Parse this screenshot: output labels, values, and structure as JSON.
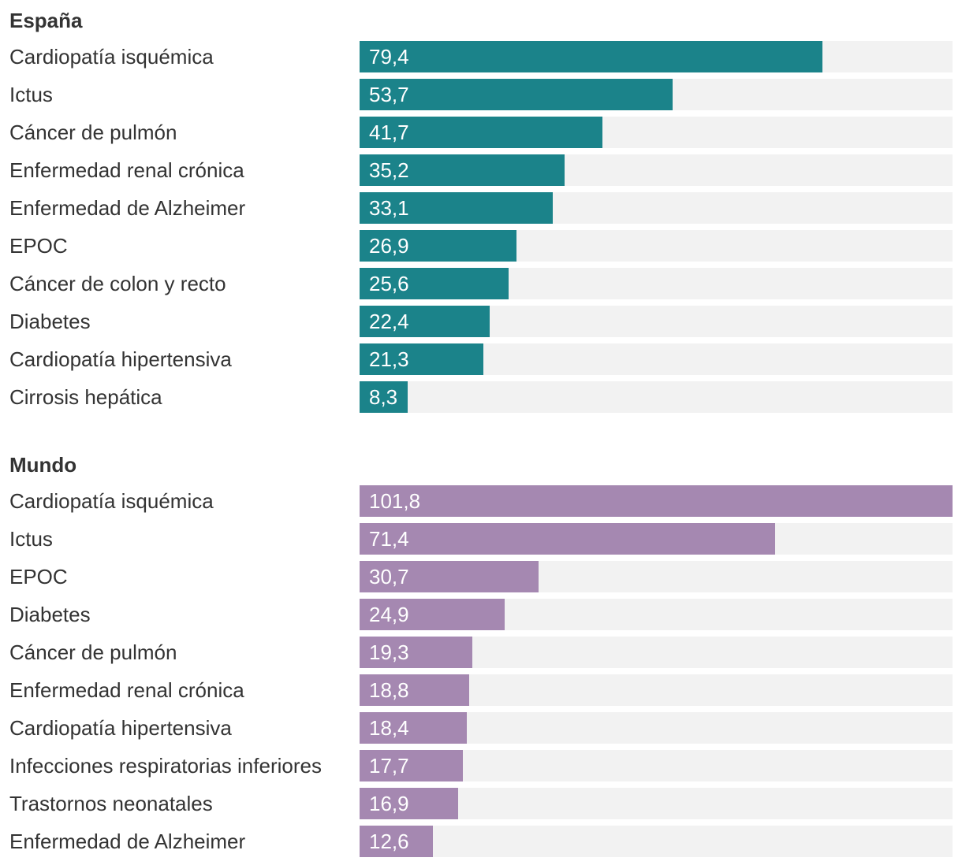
{
  "chart_data": [
    {
      "type": "bar",
      "orientation": "horizontal",
      "title": "España",
      "color": "#1b838a",
      "track_color": "#f2f2f2",
      "xlim": [
        0,
        101.8
      ],
      "categories": [
        "Cardiopatía isquémica",
        "Ictus",
        "Cáncer de pulmón",
        "Enfermedad renal crónica",
        "Enfermedad de Alzheimer",
        "EPOC",
        "Cáncer de colon y recto",
        "Diabetes",
        "Cardiopatía hipertensiva",
        "Cirrosis hepática"
      ],
      "values": [
        79.4,
        53.7,
        41.7,
        35.2,
        33.1,
        26.9,
        25.6,
        22.4,
        21.3,
        8.3
      ],
      "value_labels": [
        "79,4",
        "53,7",
        "41,7",
        "35,2",
        "33,1",
        "26,9",
        "25,6",
        "22,4",
        "21,3",
        "8,3"
      ]
    },
    {
      "type": "bar",
      "orientation": "horizontal",
      "title": "Mundo",
      "color": "#a588b1",
      "track_color": "#f2f2f2",
      "xlim": [
        0,
        101.8
      ],
      "categories": [
        "Cardiopatía isquémica",
        "Ictus",
        "EPOC",
        "Diabetes",
        "Cáncer de pulmón",
        "Enfermedad renal crónica",
        "Cardiopatía hipertensiva",
        "Infecciones respiratorias inferiores",
        "Trastornos neonatales",
        "Enfermedad de Alzheimer"
      ],
      "values": [
        101.8,
        71.4,
        30.7,
        24.9,
        19.3,
        18.8,
        18.4,
        17.7,
        16.9,
        12.6
      ],
      "value_labels": [
        "101,8",
        "71,4",
        "30,7",
        "24,9",
        "19,3",
        "18,8",
        "18,4",
        "17,7",
        "16,9",
        "12,6"
      ]
    }
  ]
}
